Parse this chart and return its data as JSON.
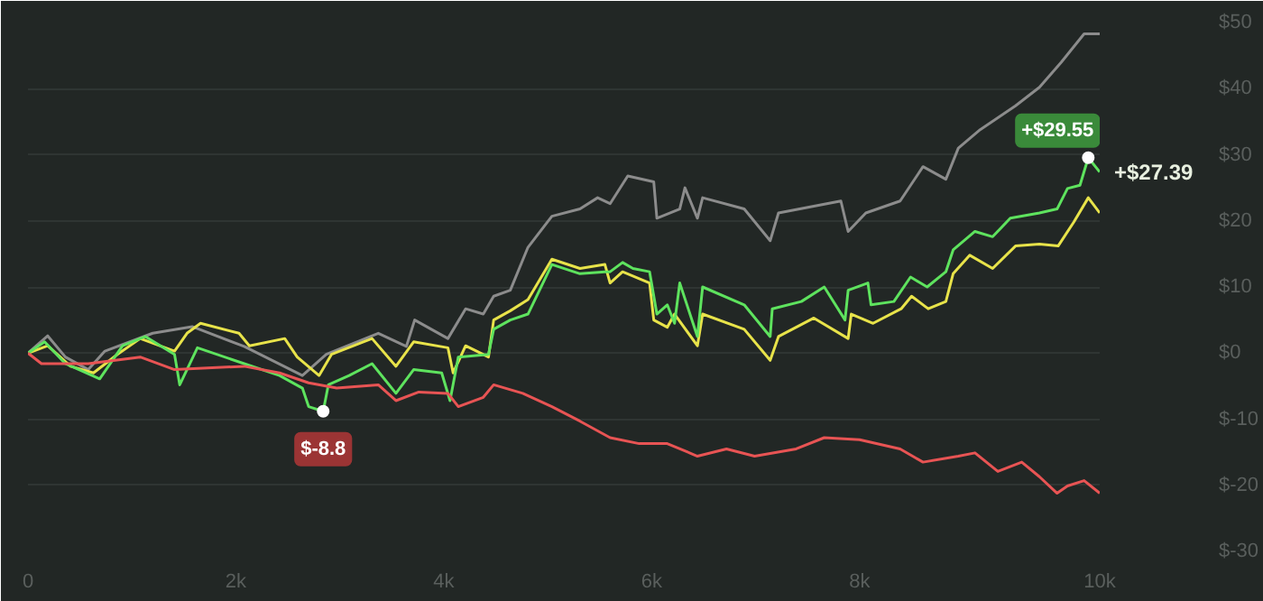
{
  "chart_data": {
    "type": "line",
    "xlim": [
      0,
      10310
    ],
    "ylim": [
      -30,
      50
    ],
    "xticks": [
      0,
      {
        "value": 2000,
        "label": "2k"
      },
      {
        "value": 4000,
        "label": "4k"
      },
      {
        "value": 6000,
        "label": "6k"
      },
      {
        "value": 8000,
        "label": "8k"
      },
      {
        "value": 10310,
        "label": "10k"
      }
    ],
    "yticks": [
      {
        "value": -30,
        "label": "$-30"
      },
      {
        "value": -20,
        "label": "$-20"
      },
      {
        "value": -10,
        "label": "$-10"
      },
      {
        "value": 0,
        "label": "$0"
      },
      {
        "value": 10,
        "label": "$10"
      },
      {
        "value": 20,
        "label": "$20"
      },
      {
        "value": 30,
        "label": "$30"
      },
      {
        "value": 40,
        "label": "$40"
      },
      {
        "value": 50,
        "label": "$50"
      }
    ],
    "grid": "y",
    "series": [
      {
        "color": "#8c8c8c",
        "x": [
          0,
          190,
          360,
          580,
          740,
          1200,
          1580,
          2080,
          2640,
          2870,
          3370,
          3640,
          3720,
          4040,
          4210,
          4380,
          4480,
          4640,
          4810,
          5040,
          5310,
          5480,
          5600,
          5770,
          6020,
          6050,
          6270,
          6320,
          6440,
          6490,
          6890,
          7140,
          7220,
          7820,
          7890,
          8060,
          8390,
          8610,
          8830,
          8950,
          9160,
          9500,
          9730,
          9940,
          10160,
          10310
        ],
        "values": [
          0,
          2.6,
          -0.6,
          -2.5,
          0.3,
          3,
          4,
          1,
          -3.4,
          -0.2,
          3,
          1,
          5,
          2.2,
          6.7,
          5.9,
          8.6,
          9.5,
          16,
          20.7,
          21.8,
          23.5,
          22.6,
          26.8,
          25.9,
          20.4,
          21.8,
          25,
          20.4,
          23.5,
          21.8,
          17,
          21.2,
          23,
          18.4,
          21.2,
          23,
          28.2,
          26.3,
          31,
          33.8,
          37.4,
          40.2,
          44,
          48.3,
          48.3
        ]
      },
      {
        "color": "#e8e34a",
        "x": [
          0,
          190,
          410,
          630,
          860,
          1080,
          1410,
          1530,
          1660,
          2030,
          2130,
          2470,
          2590,
          2800,
          2920,
          3310,
          3540,
          3710,
          4040,
          4090,
          4210,
          4430,
          4480,
          4640,
          4810,
          5040,
          5310,
          5550,
          5600,
          5720,
          5980,
          6020,
          6150,
          6220,
          6440,
          6490,
          6890,
          7140,
          7220,
          7560,
          7890,
          7920,
          8130,
          8400,
          8500,
          8660,
          8830,
          8900,
          9060,
          9280,
          9500,
          9730,
          9910,
          10060,
          10200,
          10310
        ],
        "values": [
          0,
          1.1,
          -2,
          -3,
          -0.2,
          2.2,
          0.3,
          3,
          4.5,
          3,
          1.1,
          2.2,
          -0.6,
          -3.4,
          -0.2,
          2.2,
          -2,
          1.7,
          0.8,
          -3,
          1.1,
          -0.6,
          5,
          6.4,
          8.1,
          14.2,
          12.8,
          13.4,
          10.6,
          12.3,
          10.6,
          5,
          3.9,
          5.9,
          1.1,
          5.9,
          3.6,
          -1.1,
          2.5,
          5.3,
          2.2,
          5.9,
          4.5,
          6.7,
          8.6,
          6.7,
          7.8,
          12,
          14.8,
          12.8,
          16.2,
          16.5,
          16.2,
          19.8,
          23.5,
          21.2
        ]
      },
      {
        "color": "#5ee35e",
        "x": [
          0,
          160,
          360,
          690,
          910,
          1130,
          1410,
          1460,
          1630,
          2080,
          2420,
          2640,
          2700,
          2840,
          2890,
          3090,
          3310,
          3540,
          3710,
          3980,
          4060,
          4140,
          4430,
          4480,
          4640,
          4810,
          5040,
          5310,
          5550,
          5600,
          5720,
          5820,
          5980,
          6050,
          6150,
          6220,
          6270,
          6440,
          6490,
          6890,
          7140,
          7160,
          7440,
          7660,
          7860,
          7890,
          8080,
          8110,
          8330,
          8490,
          8650,
          8830,
          8900,
          9110,
          9280,
          9450,
          9730,
          9900,
          10000,
          10120,
          10200,
          10310
        ],
        "values": [
          0,
          1.7,
          -1.6,
          -3.9,
          1.1,
          2.5,
          -0.2,
          -4.8,
          0.8,
          -1.6,
          -3.4,
          -5.3,
          -8.1,
          -8.8,
          -4.8,
          -3.4,
          -1.6,
          -6.1,
          -2.5,
          -3,
          -7.2,
          -0.6,
          -0.2,
          3.6,
          5,
          5.9,
          13.4,
          12,
          12.3,
          12.3,
          13.7,
          12.8,
          12.3,
          5.9,
          7.3,
          4.5,
          10.6,
          2.5,
          10,
          7.3,
          2.5,
          6.7,
          7.8,
          10,
          5,
          9.5,
          10.6,
          7.3,
          7.8,
          11.5,
          10,
          12.3,
          15.6,
          18.4,
          17.6,
          20.4,
          21.2,
          21.8,
          24.9,
          25.4,
          29.55,
          27.39
        ]
      },
      {
        "color": "#e85454",
        "x": [
          0,
          130,
          580,
          1080,
          1410,
          2080,
          2420,
          2700,
          2970,
          3370,
          3540,
          3760,
          4040,
          4140,
          4380,
          4480,
          4760,
          5040,
          5310,
          5600,
          5880,
          6150,
          6440,
          6720,
          6990,
          7390,
          7660,
          8000,
          8390,
          8610,
          8950,
          9110,
          9330,
          9560,
          9730,
          9900,
          10000,
          10160,
          10310
        ],
        "values": [
          0,
          -1.6,
          -1.6,
          -0.6,
          -2.5,
          -2,
          -3,
          -4.5,
          -5.3,
          -4.8,
          -7.2,
          -5.9,
          -6.1,
          -8.1,
          -6.7,
          -4.8,
          -6.1,
          -8.1,
          -10.3,
          -12.8,
          -13.7,
          -13.7,
          -15.6,
          -14.5,
          -15.6,
          -14.5,
          -12.8,
          -13.1,
          -14.5,
          -16.5,
          -15.6,
          -15.1,
          -17.9,
          -16.5,
          -18.7,
          -21.2,
          -20.1,
          -19.3,
          -21.2
        ]
      }
    ],
    "annotations": [
      {
        "text": "$-8.8",
        "x": 2840,
        "y": -8.8
      },
      {
        "text": "+$29.55",
        "x": 10200,
        "y": 29.55
      },
      {
        "text": "+$27.39",
        "x": 10310,
        "y": 27.39
      }
    ]
  }
}
